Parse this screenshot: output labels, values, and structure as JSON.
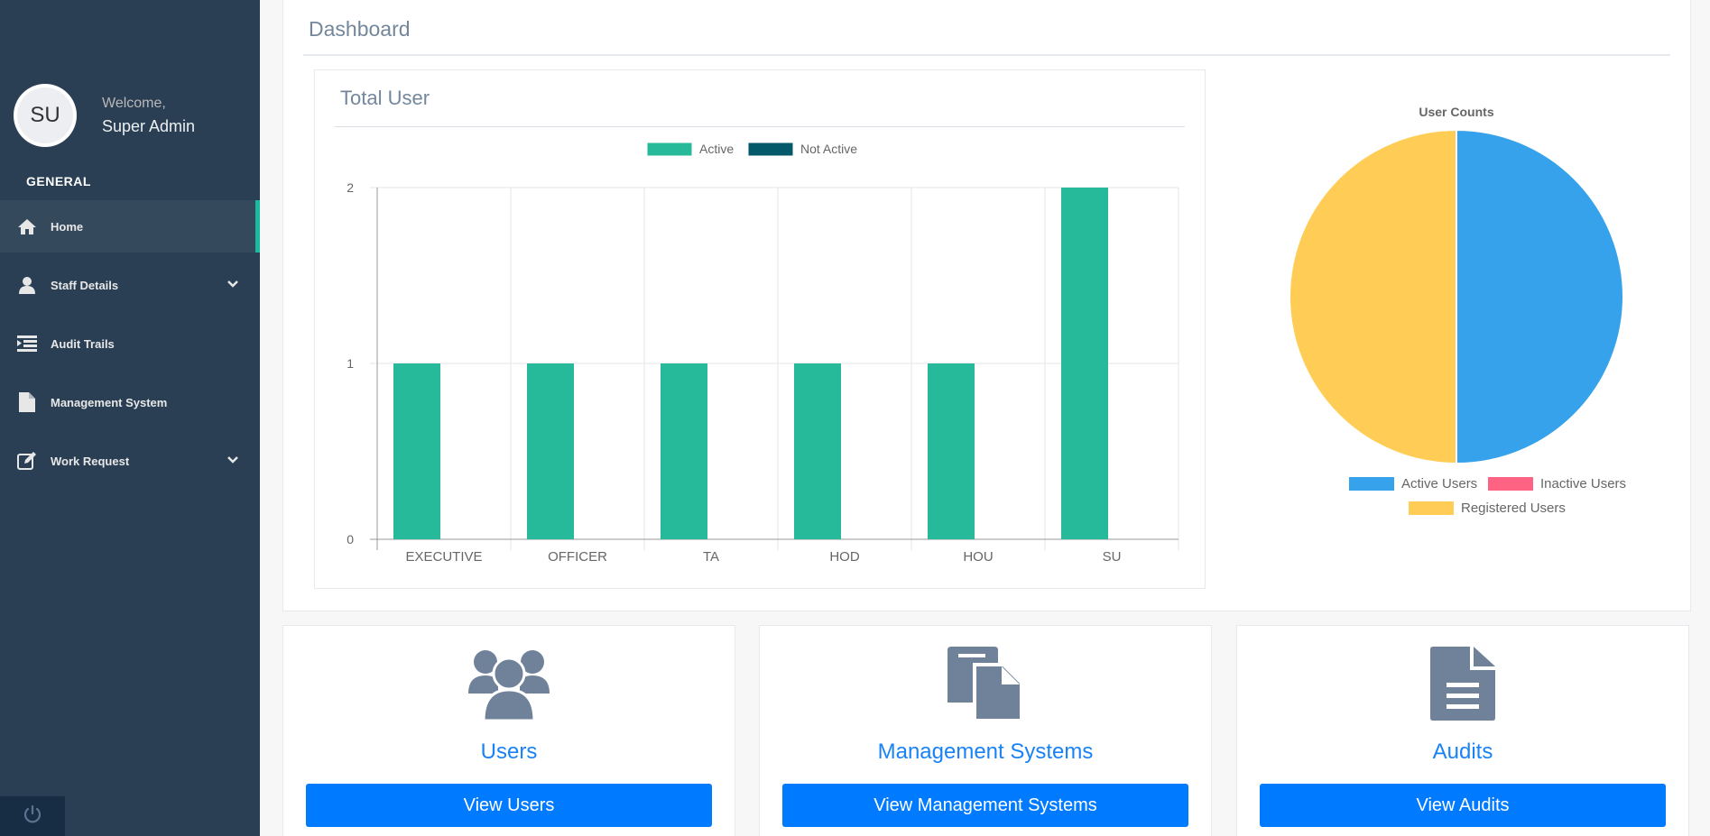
{
  "sidebar": {
    "avatar_initials": "SU",
    "welcome": "Welcome,",
    "user_name": "Super Admin",
    "section_title": "GENERAL",
    "items": [
      {
        "label": "Home",
        "icon": "home-icon",
        "active": true,
        "has_chevron": false
      },
      {
        "label": "Staff Details",
        "icon": "user-icon",
        "active": false,
        "has_chevron": true
      },
      {
        "label": "Audit Trails",
        "icon": "list-icon",
        "active": false,
        "has_chevron": false
      },
      {
        "label": "Management System",
        "icon": "file-icon",
        "active": false,
        "has_chevron": false
      },
      {
        "label": "Work Request",
        "icon": "edit-icon",
        "active": false,
        "has_chevron": true
      }
    ],
    "footer_icon": "power-icon"
  },
  "main": {
    "title": "Dashboard"
  },
  "bar_panel": {
    "title": "Total User"
  },
  "chart_data": [
    {
      "type": "bar",
      "title": "",
      "categories": [
        "EXECUTIVE",
        "OFFICER",
        "TA",
        "HOD",
        "HOU",
        "SU"
      ],
      "series": [
        {
          "name": "Active",
          "values": [
            1,
            1,
            1,
            1,
            1,
            2
          ],
          "color": "#26b99a"
        },
        {
          "name": "Not Active",
          "values": [
            0,
            0,
            0,
            0,
            0,
            0
          ],
          "color": "#03586a"
        }
      ],
      "ylim": [
        0,
        2
      ],
      "yticks": [
        0,
        1,
        2
      ],
      "grid": true,
      "legend": "top"
    },
    {
      "type": "pie",
      "title": "User Counts",
      "labels": [
        "Active Users",
        "Inactive Users",
        "Registered Users"
      ],
      "values": [
        1,
        0,
        1
      ],
      "colors": [
        "#36a2eb",
        "#ff6384",
        "#ffcd56"
      ],
      "legend": "bottom"
    }
  ],
  "cards": [
    {
      "title": "Users",
      "button": "View Users",
      "icon": "users-icon"
    },
    {
      "title": "Management Systems",
      "button": "View Management Systems",
      "icon": "copy-icon"
    },
    {
      "title": "Audits",
      "button": "View Audits",
      "icon": "document-icon"
    }
  ]
}
